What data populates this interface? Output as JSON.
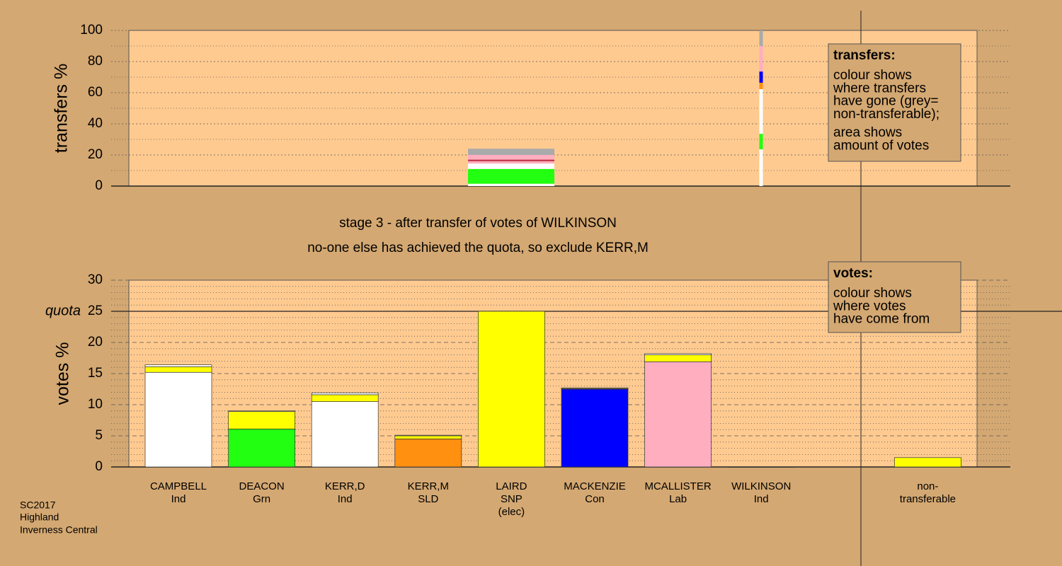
{
  "chart_data": [
    {
      "type": "stacked-bar",
      "ylabel": "transfers %",
      "ylim": [
        0,
        100
      ],
      "yticks": [
        0,
        20,
        40,
        60,
        80,
        100
      ],
      "bars": [
        {
          "segments": [
            {
              "color": "#ffffff",
              "value": 1.5
            },
            {
              "color": "#22ff11",
              "value": 9.5
            },
            {
              "color": "#ffffff",
              "value": 3.5
            },
            {
              "color": "#ffaec0",
              "value": 1.5
            },
            {
              "color": "#c0304a",
              "value": 1
            },
            {
              "color": "#ffaec0",
              "value": 3
            },
            {
              "color": "#aaaaaa",
              "value": 4
            }
          ]
        },
        {
          "segments": [
            {
              "color": "#ffffff",
              "value": 23.6
            },
            {
              "color": "#22ff11",
              "value": 10
            },
            {
              "color": "#ffffff",
              "value": 28.7
            },
            {
              "color": "#ff9010",
              "value": 4.1
            },
            {
              "color": "#0000ff",
              "value": 7.2
            },
            {
              "color": "#ffaec0",
              "value": 16.4
            },
            {
              "color": "#aaaaaa",
              "value": 10
            }
          ]
        }
      ],
      "legend": {
        "title": "transfers:",
        "paragraphs": [
          [
            "colour shows",
            "where transfers",
            "have gone (grey=",
            "non-transferable);"
          ],
          [
            "area shows",
            "amount of votes"
          ]
        ]
      }
    },
    {
      "type": "stacked-bar",
      "ylabel": "votes %",
      "ylim": [
        0,
        30
      ],
      "yticks": [
        0,
        5,
        10,
        15,
        20,
        25,
        30
      ],
      "quota": {
        "label": "quota",
        "value": 25
      },
      "categories": [
        [
          "CAMPBELL",
          "Ind"
        ],
        [
          "DEACON",
          "Grn"
        ],
        [
          "KERR,D",
          "Ind"
        ],
        [
          "KERR,M",
          "SLD"
        ],
        [
          "LAIRD",
          "SNP",
          "(elec)"
        ],
        [
          "MACKENZIE",
          "Con"
        ],
        [
          "MCALLISTER",
          "Lab"
        ],
        [
          "WILKINSON",
          "Ind"
        ],
        null,
        [
          "non-",
          "transferable"
        ]
      ],
      "bars": [
        {
          "segments": [
            {
              "color": "#ffffff",
              "value": 15.2
            },
            {
              "color": "#ffff00",
              "value": 0.9
            },
            {
              "color": "#ffffff",
              "value": 0.3
            }
          ]
        },
        {
          "segments": [
            {
              "color": "#22ff11",
              "value": 6.1
            },
            {
              "color": "#ffff00",
              "value": 2.8
            },
            {
              "color": "#ffffff",
              "value": 0.1
            }
          ]
        },
        {
          "segments": [
            {
              "color": "#ffffff",
              "value": 10.5
            },
            {
              "color": "#ffff00",
              "value": 1.1
            },
            {
              "color": "#ffffff",
              "value": 0.3
            }
          ]
        },
        {
          "segments": [
            {
              "color": "#ff9010",
              "value": 4.5
            },
            {
              "color": "#ffff00",
              "value": 0.5
            },
            {
              "color": "#ffffff",
              "value": 0.1
            }
          ]
        },
        {
          "segments": [
            {
              "color": "#ffff00",
              "value": 25
            }
          ]
        },
        {
          "segments": [
            {
              "color": "#0000ff",
              "value": 12.5
            },
            {
              "color": "#ffff00",
              "value": 0.1
            },
            {
              "color": "#ffffff",
              "value": 0.1
            }
          ]
        },
        {
          "segments": [
            {
              "color": "#ffaec0",
              "value": 16.9
            },
            {
              "color": "#ffff00",
              "value": 1.1
            },
            {
              "color": "#ffffff",
              "value": 0.2
            }
          ]
        },
        {
          "segments": [
            {
              "color": "#ffffff",
              "value": 0
            }
          ]
        },
        {
          "segments": []
        },
        {
          "segments": [
            {
              "color": "#ffff00",
              "value": 1.5
            }
          ]
        }
      ],
      "legend": {
        "title": "votes:",
        "paragraphs": [
          [
            "colour shows",
            "where votes",
            "have come from"
          ]
        ]
      }
    }
  ],
  "stage_texts": [
    "stage 3 - after transfer of votes of WILKINSON",
    "no-one else has achieved the quota, so exclude KERR,M"
  ],
  "footer": [
    "SC2017",
    "Highland",
    "Inverness Central"
  ]
}
